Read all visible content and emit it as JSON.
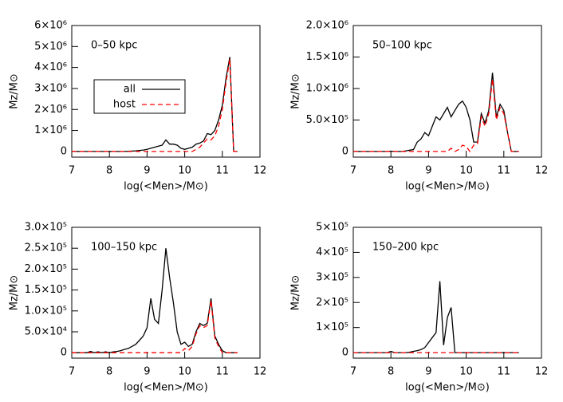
{
  "chart_data": [
    {
      "type": "line",
      "annotation": "0–50 kpc",
      "x_label": "log(<Men>/M⊙)",
      "y_label": "Mz/M⊙",
      "x": [
        7.0,
        7.1,
        7.2,
        7.3,
        7.4,
        7.5,
        7.6,
        7.7,
        7.8,
        7.9,
        8.0,
        8.1,
        8.2,
        8.3,
        8.4,
        8.5,
        8.6,
        8.7,
        8.8,
        8.9,
        9.0,
        9.1,
        9.2,
        9.3,
        9.4,
        9.5,
        9.6,
        9.7,
        9.8,
        9.9,
        10.0,
        10.1,
        10.2,
        10.3,
        10.4,
        10.5,
        10.6,
        10.7,
        10.8,
        10.9,
        11.0,
        11.1,
        11.2,
        11.3,
        11.4
      ],
      "series": [
        {
          "name": "all",
          "color": "#000000",
          "dashed": false,
          "values": [
            0,
            0,
            0,
            0,
            0,
            0,
            0,
            0,
            0,
            0,
            0,
            0,
            0,
            0,
            0,
            10000,
            20000,
            30000,
            50000,
            70000,
            100000,
            150000,
            200000,
            250000,
            300000,
            550000,
            350000,
            350000,
            300000,
            150000,
            100000,
            150000,
            200000,
            350000,
            400000,
            500000,
            850000,
            800000,
            1000000,
            1500000,
            2200000,
            3500000,
            4500000,
            0,
            0
          ]
        },
        {
          "name": "host",
          "color": "#ff0000",
          "dashed": true,
          "values": [
            0,
            0,
            0,
            0,
            0,
            0,
            0,
            0,
            0,
            0,
            0,
            0,
            0,
            0,
            0,
            0,
            0,
            0,
            0,
            0,
            0,
            0,
            0,
            0,
            0,
            0,
            0,
            0,
            0,
            0,
            0,
            0,
            0,
            100000,
            200000,
            400000,
            600000,
            550000,
            750000,
            1200000,
            2000000,
            3300000,
            4400000,
            0,
            0
          ]
        }
      ],
      "legend": true,
      "xlim": [
        7,
        12
      ],
      "xticks": [
        7,
        8,
        9,
        10,
        11,
        12
      ],
      "ylim": [
        -270000,
        6000000
      ],
      "yticks": [
        0,
        {
          "value": 1000000,
          "label": "1×10⁶"
        },
        {
          "value": 2000000,
          "label": "2×10⁶"
        },
        {
          "value": 3000000,
          "label": "3×10⁶"
        },
        {
          "value": 4000000,
          "label": "4×10⁶"
        },
        {
          "value": 5000000,
          "label": "5×10⁶"
        },
        {
          "value": 6000000,
          "label": "6×10⁶"
        }
      ]
    },
    {
      "type": "line",
      "annotation": "50–100 kpc",
      "x_label": "log(<Men>/M⊙)",
      "y_label": "Mz/M⊙",
      "x": [
        7.0,
        7.1,
        7.2,
        7.3,
        7.4,
        7.5,
        7.6,
        7.7,
        7.8,
        7.9,
        8.0,
        8.1,
        8.2,
        8.3,
        8.4,
        8.5,
        8.6,
        8.7,
        8.8,
        8.9,
        9.0,
        9.1,
        9.2,
        9.3,
        9.4,
        9.5,
        9.6,
        9.7,
        9.8,
        9.9,
        10.0,
        10.1,
        10.2,
        10.3,
        10.4,
        10.5,
        10.6,
        10.7,
        10.8,
        10.9,
        11.0,
        11.1,
        11.2,
        11.3,
        11.4
      ],
      "series": [
        {
          "name": "all",
          "color": "#000000",
          "dashed": false,
          "values": [
            0,
            0,
            0,
            0,
            0,
            0,
            0,
            0,
            0,
            0,
            5000,
            0,
            0,
            0,
            10000,
            20000,
            30000,
            150000,
            200000,
            300000,
            250000,
            400000,
            550000,
            500000,
            600000,
            700000,
            550000,
            650000,
            750000,
            800000,
            700000,
            500000,
            150000,
            150000,
            600000,
            450000,
            650000,
            1250000,
            550000,
            750000,
            650000,
            300000,
            0,
            0,
            0
          ]
        },
        {
          "name": "host",
          "color": "#ff0000",
          "dashed": true,
          "values": [
            0,
            0,
            0,
            0,
            0,
            0,
            0,
            0,
            0,
            0,
            0,
            0,
            0,
            0,
            0,
            0,
            0,
            0,
            0,
            0,
            0,
            0,
            0,
            0,
            0,
            0,
            50000,
            0,
            30000,
            100000,
            80000,
            0,
            100000,
            120000,
            550000,
            400000,
            600000,
            1150000,
            500000,
            700000,
            600000,
            300000,
            0,
            0,
            0
          ]
        }
      ],
      "legend": false,
      "xlim": [
        7,
        12
      ],
      "xticks": [
        7,
        8,
        9,
        10,
        11,
        12
      ],
      "ylim": [
        -90000,
        2000000
      ],
      "yticks": [
        0,
        {
          "value": 500000,
          "label": "5.0×10⁵"
        },
        {
          "value": 1000000,
          "label": "1.0×10⁶"
        },
        {
          "value": 1500000,
          "label": "1.5×10⁶"
        },
        {
          "value": 2000000,
          "label": "2.0×10⁶"
        }
      ]
    },
    {
      "type": "line",
      "annotation": "100–150 kpc",
      "x_label": "log(<Men>/M⊙)",
      "y_label": "Mz/M⊙",
      "x": [
        7.0,
        7.1,
        7.2,
        7.3,
        7.4,
        7.5,
        7.6,
        7.7,
        7.8,
        7.9,
        8.0,
        8.1,
        8.2,
        8.3,
        8.4,
        8.5,
        8.6,
        8.7,
        8.8,
        8.9,
        9.0,
        9.1,
        9.2,
        9.3,
        9.4,
        9.5,
        9.6,
        9.7,
        9.8,
        9.9,
        10.0,
        10.1,
        10.2,
        10.3,
        10.4,
        10.5,
        10.6,
        10.7,
        10.8,
        10.9,
        11.0,
        11.1,
        11.2,
        11.3,
        11.4
      ],
      "series": [
        {
          "name": "all",
          "color": "#000000",
          "dashed": false,
          "values": [
            0,
            0,
            0,
            0,
            0,
            3000,
            0,
            2000,
            0,
            2000,
            0,
            2000,
            3000,
            5000,
            8000,
            10000,
            15000,
            20000,
            30000,
            40000,
            60000,
            130000,
            80000,
            70000,
            150000,
            250000,
            180000,
            120000,
            50000,
            20000,
            25000,
            15000,
            20000,
            50000,
            70000,
            65000,
            70000,
            130000,
            40000,
            20000,
            5000,
            0,
            0,
            0,
            0
          ]
        },
        {
          "name": "host",
          "color": "#ff0000",
          "dashed": true,
          "values": [
            0,
            0,
            0,
            0,
            0,
            0,
            0,
            0,
            0,
            0,
            0,
            0,
            0,
            0,
            0,
            0,
            0,
            0,
            0,
            0,
            0,
            0,
            0,
            0,
            0,
            0,
            0,
            0,
            0,
            0,
            10000,
            5000,
            15000,
            45000,
            65000,
            60000,
            65000,
            125000,
            35000,
            15000,
            0,
            0,
            0,
            0,
            0
          ]
        }
      ],
      "legend": false,
      "xlim": [
        7,
        12
      ],
      "xticks": [
        7,
        8,
        9,
        10,
        11,
        12
      ],
      "ylim": [
        -13000,
        300000
      ],
      "yticks": [
        0,
        {
          "value": 50000,
          "label": "5.0×10⁴"
        },
        {
          "value": 100000,
          "label": "1.0×10⁵"
        },
        {
          "value": 150000,
          "label": "1.5×10⁵"
        },
        {
          "value": 200000,
          "label": "2.0×10⁵"
        },
        {
          "value": 250000,
          "label": "2.5×10⁵"
        },
        {
          "value": 300000,
          "label": "3.0×10⁵"
        }
      ]
    },
    {
      "type": "line",
      "annotation": "150–200 kpc",
      "x_label": "log(<Men>/M⊙)",
      "y_label": "Mz/M⊙",
      "x": [
        7.0,
        7.1,
        7.2,
        7.3,
        7.4,
        7.5,
        7.6,
        7.7,
        7.8,
        7.9,
        8.0,
        8.1,
        8.2,
        8.3,
        8.4,
        8.5,
        8.6,
        8.7,
        8.8,
        8.9,
        9.0,
        9.1,
        9.2,
        9.3,
        9.4,
        9.5,
        9.6,
        9.7,
        9.8,
        9.9,
        10.0,
        10.1,
        10.2,
        10.3,
        10.4,
        10.5,
        10.6,
        10.7,
        10.8,
        10.9,
        11.0,
        11.1,
        11.2,
        11.3,
        11.4
      ],
      "series": [
        {
          "name": "all",
          "color": "#000000",
          "dashed": false,
          "values": [
            0,
            0,
            0,
            0,
            0,
            0,
            0,
            0,
            0,
            0,
            5000,
            0,
            0,
            0,
            0,
            2000,
            5000,
            8000,
            12000,
            20000,
            40000,
            60000,
            80000,
            285000,
            30000,
            140000,
            180000,
            0,
            0,
            0,
            0,
            0,
            0,
            0,
            0,
            0,
            0,
            0,
            0,
            0,
            0,
            0,
            0,
            0,
            0
          ]
        },
        {
          "name": "host",
          "color": "#ff0000",
          "dashed": true,
          "values": [
            0,
            0,
            0,
            0,
            0,
            0,
            0,
            0,
            0,
            0,
            0,
            0,
            0,
            0,
            0,
            0,
            0,
            0,
            0,
            0,
            0,
            0,
            0,
            0,
            0,
            0,
            0,
            0,
            0,
            0,
            0,
            0,
            0,
            0,
            0,
            0,
            0,
            0,
            0,
            0,
            0,
            0,
            0,
            0,
            0
          ]
        }
      ],
      "legend": false,
      "xlim": [
        7,
        12
      ],
      "xticks": [
        7,
        8,
        9,
        10,
        11,
        12
      ],
      "ylim": [
        -22000,
        500000
      ],
      "yticks": [
        0,
        {
          "value": 100000,
          "label": "1×10⁵"
        },
        {
          "value": 200000,
          "label": "2×10⁵"
        },
        {
          "value": 300000,
          "label": "3×10⁵"
        },
        {
          "value": 400000,
          "label": "4×10⁵"
        },
        {
          "value": 500000,
          "label": "5×10⁵"
        }
      ]
    }
  ]
}
